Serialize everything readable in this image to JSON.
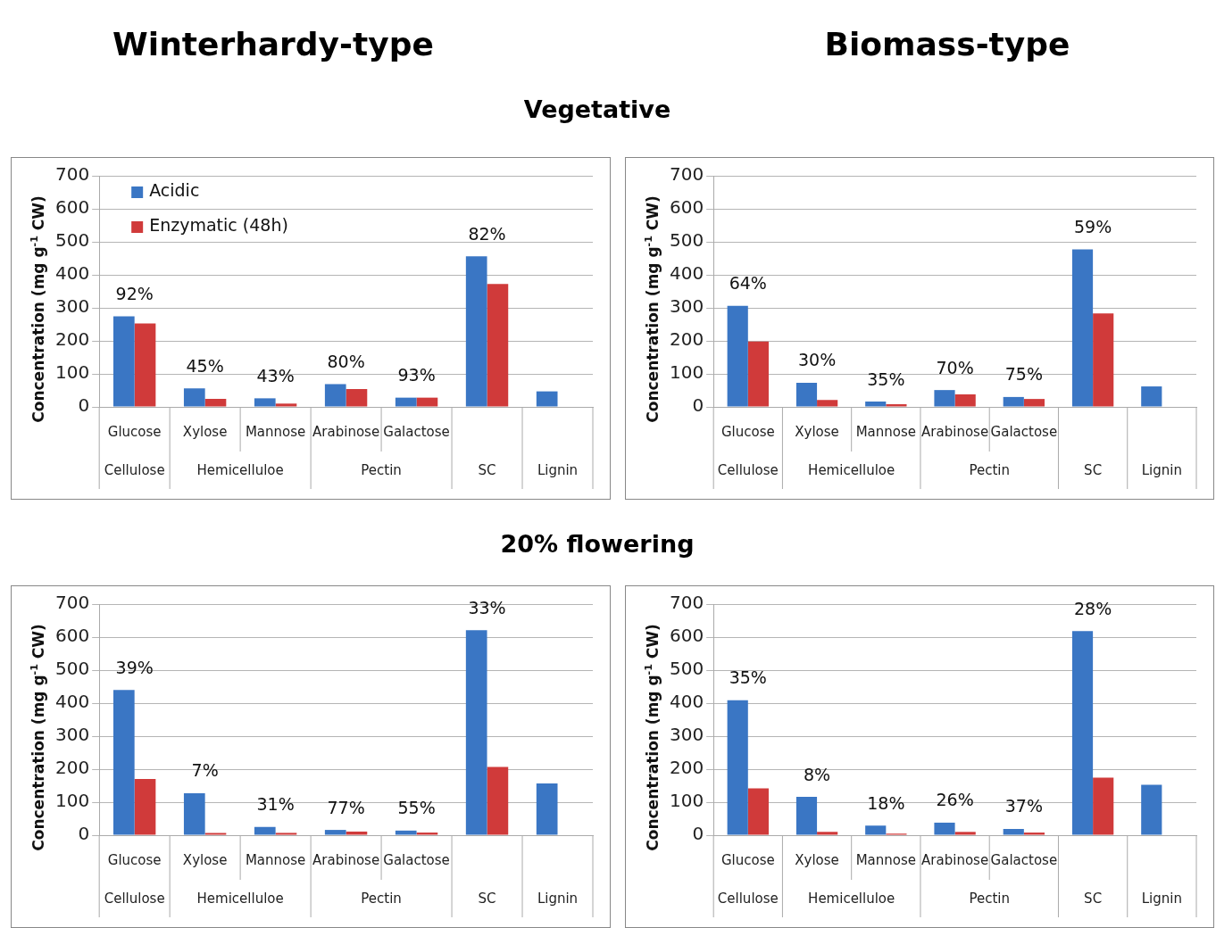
{
  "chart_data": [
    {
      "type": "bar",
      "title": "Winterhardy-type",
      "subtitle": "Vegetative",
      "ylabel": "Concentration (mg g$^{-1}$ CW)",
      "categories": [
        "Glucose",
        "Xylose",
        "Mannose",
        "Arabinose",
        "Galactose",
        null,
        null
      ],
      "annotations": [
        "Cellulose",
        "Hemicelluloe",
        "Pectin",
        "SC",
        "Lignin",
        "92%",
        "45%",
        "43%",
        "80%",
        "93%",
        "82%"
      ],
      "series": [
        {
          "name": "Acidic",
          "color": "#3a76c4",
          "values": [
            274,
            56,
            26,
            69,
            28,
            456,
            47
          ]
        },
        {
          "name": "Enzymatic (48h)",
          "color": "#d03a3a",
          "values": [
            253,
            24,
            10,
            54,
            28,
            372,
            null
          ]
        }
      ],
      "ylim": [
        0,
        700
      ],
      "yticks": [
        0,
        100,
        200,
        300,
        400,
        500,
        600,
        700
      ],
      "grid": "y",
      "legend": "top left"
    },
    {
      "type": "bar",
      "title": "Biomass-type",
      "ylabel": "Concentration (mg g$^{-1}$ CW)",
      "categories": [
        "Glucose",
        "Xylose",
        "Mannose",
        "Arabinose",
        "Galactose",
        null,
        null
      ],
      "annotations": [
        "Cellulose",
        "Hemicelluloe",
        "Pectin",
        "SC",
        "Lignin",
        "64%",
        "30%",
        "35%",
        "70%",
        "75%",
        "59%"
      ],
      "series": [
        {
          "color": "#3a76c4",
          "values": [
            306,
            73,
            16,
            51,
            30,
            477,
            62
          ]
        },
        {
          "color": "#d03a3a",
          "values": [
            198,
            21,
            8,
            38,
            24,
            283,
            null
          ]
        }
      ],
      "ylim": [
        0,
        700
      ],
      "yticks": [
        0,
        100,
        200,
        300,
        400,
        500,
        600,
        700
      ],
      "grid": "y"
    },
    {
      "type": "bar",
      "subtitle": "20% flowering",
      "ylabel": "Concentration (mg g$^{-1}$ CW)",
      "categories": [
        "Glucose",
        "Xylose",
        "Mannose",
        "Arabinose",
        "Galactose",
        null,
        null
      ],
      "annotations": [
        "Cellulose",
        "Hemicelluloe",
        "Pectin",
        "SC",
        "Lignin",
        "39%",
        "7%",
        "31%",
        "77%",
        "55%",
        "33%"
      ],
      "series": [
        {
          "color": "#3a76c4",
          "values": [
            440,
            127,
            25,
            16,
            14,
            621,
            157
          ]
        },
        {
          "color": "#d03a3a",
          "values": [
            170,
            7,
            7,
            11,
            8,
            207,
            null
          ]
        }
      ],
      "ylim": [
        0,
        700
      ],
      "yticks": [
        0,
        100,
        200,
        300,
        400,
        500,
        600,
        700
      ],
      "grid": "y"
    },
    {
      "type": "bar",
      "ylabel": "Concentration (mg g$^{-1}$ CW)",
      "categories": [
        "Glucose",
        "Xylose",
        "Mannose",
        "Arabinose",
        "Galactose",
        null,
        null
      ],
      "annotations": [
        "Cellulose",
        "Hemicelluloe",
        "Pectin",
        "SC",
        "Lignin",
        "35%",
        "8%",
        "18%",
        "26%",
        "37%",
        "28%"
      ],
      "series": [
        {
          "color": "#3a76c4",
          "values": [
            409,
            116,
            29,
            38,
            19,
            618,
            153
          ]
        },
        {
          "color": "#d03a3a",
          "values": [
            142,
            10,
            5,
            10,
            8,
            174,
            null
          ]
        }
      ],
      "ylim": [
        0,
        700
      ],
      "yticks": [
        0,
        100,
        200,
        300,
        400,
        500,
        600,
        700
      ],
      "grid": "y"
    }
  ]
}
